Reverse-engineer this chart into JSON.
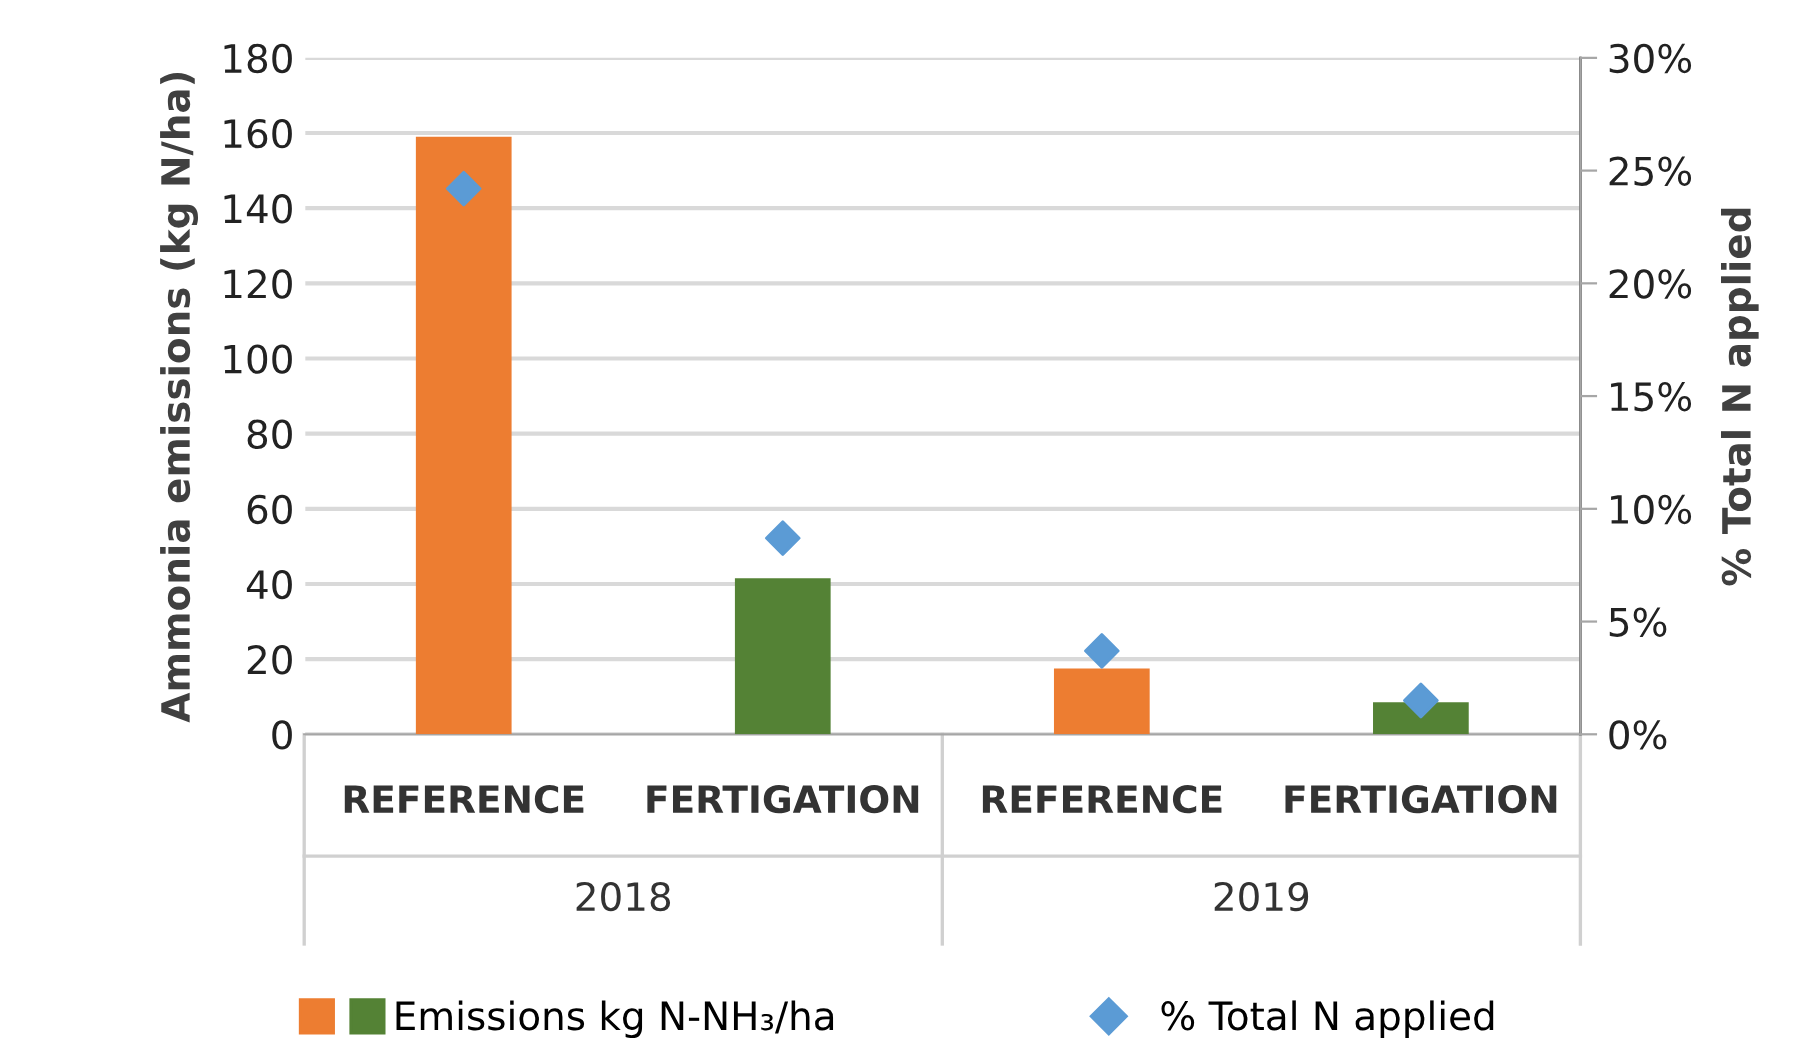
{
  "chart_data": {
    "type": "bar",
    "categories": [
      "REFERENCE",
      "FERTIGATION",
      "REFERENCE",
      "FERTIGATION"
    ],
    "annotations": [
      "2018",
      "2019"
    ],
    "series": [
      {
        "name": "Emissions kg N-NH₃/ha",
        "colors": [
          "#ed7d31",
          "#548235",
          "#ed7d31",
          "#548235"
        ],
        "values": [
          159,
          41.5,
          17.5,
          8.5
        ]
      },
      {
        "name": "% Total N applied",
        "type": "scatter",
        "axis": "y2",
        "color": "#5b9bd5",
        "marker": "diamond",
        "values": [
          24.2,
          8.7,
          3.7,
          1.5
        ]
      }
    ],
    "ylabel": "Ammonia emissions (kg N/ha)",
    "y2label": "% Total N applied",
    "ylim": [
      0,
      180
    ],
    "yticks": [
      0,
      20,
      40,
      60,
      80,
      100,
      120,
      140,
      160,
      180
    ],
    "y2lim": [
      0,
      30
    ],
    "y2ticks": [
      {
        "value": 0,
        "label": "0%"
      },
      {
        "value": 5,
        "label": "5%"
      },
      {
        "value": 10,
        "label": "10%"
      },
      {
        "value": 15,
        "label": "15%"
      },
      {
        "value": 20,
        "label": "20%"
      },
      {
        "value": 25,
        "label": "25%"
      },
      {
        "value": 30,
        "label": "30%"
      }
    ],
    "grid": "y",
    "legend": "bottom"
  }
}
